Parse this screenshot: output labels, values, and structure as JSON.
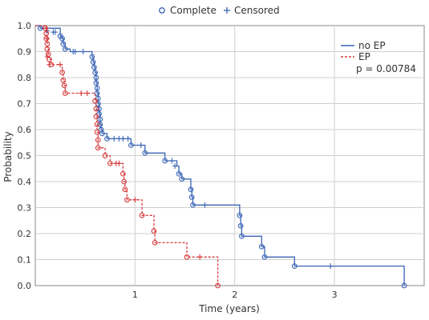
{
  "chart_data": {
    "type": "line",
    "title": "",
    "xlabel": "Time (years)",
    "ylabel": "Probability",
    "xlim": [
      0,
      3.9
    ],
    "ylim": [
      0,
      1.0
    ],
    "x_ticks": [
      1,
      2,
      3
    ],
    "x_tick_labels": [
      "1",
      "2",
      "3"
    ],
    "y_ticks": [
      0.0,
      0.1,
      0.2,
      0.3,
      0.4,
      0.5,
      0.6,
      0.7,
      0.8,
      0.9,
      1.0
    ],
    "y_tick_labels": [
      "0.0",
      "0.1",
      "0.2",
      "0.3",
      "0.4",
      "0.5",
      "0.6",
      "0.7",
      "0.8",
      "0.9",
      "1.0"
    ],
    "grid": true,
    "top_legend": {
      "complete_label": "Complete",
      "censored_label": "Censored"
    },
    "legend_placement": "top-right",
    "p_value_label": "p = 0.00784",
    "series": [
      {
        "name": "no EP",
        "color": "#3a64b4",
        "line_style": "solid",
        "steps": [
          [
            0.0,
            1.0
          ],
          [
            0.05,
            0.99
          ],
          [
            0.25,
            0.96
          ],
          [
            0.27,
            0.95
          ],
          [
            0.28,
            0.93
          ],
          [
            0.3,
            0.91
          ],
          [
            0.35,
            0.9
          ],
          [
            0.57,
            0.88
          ],
          [
            0.58,
            0.86
          ],
          [
            0.59,
            0.84
          ],
          [
            0.6,
            0.82
          ],
          [
            0.61,
            0.8
          ],
          [
            0.61,
            0.78
          ],
          [
            0.62,
            0.76
          ],
          [
            0.62,
            0.74
          ],
          [
            0.63,
            0.72
          ],
          [
            0.63,
            0.7
          ],
          [
            0.64,
            0.68
          ],
          [
            0.64,
            0.66
          ],
          [
            0.65,
            0.64
          ],
          [
            0.65,
            0.62
          ],
          [
            0.66,
            0.6
          ],
          [
            0.67,
            0.585
          ],
          [
            0.72,
            0.565
          ],
          [
            0.96,
            0.54
          ],
          [
            1.1,
            0.51
          ],
          [
            1.3,
            0.48
          ],
          [
            1.42,
            0.46
          ],
          [
            1.44,
            0.43
          ],
          [
            1.47,
            0.41
          ],
          [
            1.56,
            0.37
          ],
          [
            1.57,
            0.34
          ],
          [
            1.58,
            0.31
          ],
          [
            2.05,
            0.27
          ],
          [
            2.06,
            0.23
          ],
          [
            2.07,
            0.19
          ],
          [
            2.27,
            0.15
          ],
          [
            2.3,
            0.11
          ],
          [
            2.6,
            0.075
          ],
          [
            3.7,
            0.0
          ]
        ],
        "events": [
          [
            0.05,
            0.99
          ],
          [
            0.25,
            0.96
          ],
          [
            0.27,
            0.95
          ],
          [
            0.28,
            0.93
          ],
          [
            0.3,
            0.91
          ],
          [
            0.57,
            0.88
          ],
          [
            0.58,
            0.86
          ],
          [
            0.59,
            0.84
          ],
          [
            0.6,
            0.82
          ],
          [
            0.61,
            0.8
          ],
          [
            0.61,
            0.78
          ],
          [
            0.62,
            0.76
          ],
          [
            0.62,
            0.74
          ],
          [
            0.63,
            0.72
          ],
          [
            0.63,
            0.7
          ],
          [
            0.64,
            0.68
          ],
          [
            0.64,
            0.66
          ],
          [
            0.65,
            0.64
          ],
          [
            0.65,
            0.62
          ],
          [
            0.66,
            0.6
          ],
          [
            0.67,
            0.585
          ],
          [
            0.72,
            0.565
          ],
          [
            0.96,
            0.54
          ],
          [
            1.1,
            0.51
          ],
          [
            1.3,
            0.48
          ],
          [
            1.44,
            0.43
          ],
          [
            1.47,
            0.41
          ],
          [
            1.56,
            0.37
          ],
          [
            1.57,
            0.34
          ],
          [
            1.58,
            0.31
          ],
          [
            2.05,
            0.27
          ],
          [
            2.06,
            0.23
          ],
          [
            2.07,
            0.19
          ],
          [
            2.27,
            0.15
          ],
          [
            2.3,
            0.11
          ],
          [
            2.6,
            0.075
          ],
          [
            3.7,
            0.0
          ]
        ],
        "censored": [
          [
            0.12,
            0.98
          ],
          [
            0.18,
            0.975
          ],
          [
            0.2,
            0.975
          ],
          [
            0.38,
            0.9
          ],
          [
            0.4,
            0.9
          ],
          [
            0.48,
            0.9
          ],
          [
            0.79,
            0.565
          ],
          [
            0.84,
            0.565
          ],
          [
            0.88,
            0.565
          ],
          [
            0.93,
            0.565
          ],
          [
            1.06,
            0.54
          ],
          [
            1.37,
            0.48
          ],
          [
            1.4,
            0.46
          ],
          [
            1.7,
            0.31
          ],
          [
            2.96,
            0.075
          ]
        ]
      },
      {
        "name": "EP",
        "color": "#d63a3a",
        "line_style": "dashed",
        "steps": [
          [
            0.0,
            1.0
          ],
          [
            0.1,
            0.99
          ],
          [
            0.11,
            0.97
          ],
          [
            0.11,
            0.95
          ],
          [
            0.12,
            0.93
          ],
          [
            0.12,
            0.91
          ],
          [
            0.13,
            0.89
          ],
          [
            0.14,
            0.87
          ],
          [
            0.16,
            0.85
          ],
          [
            0.27,
            0.82
          ],
          [
            0.28,
            0.79
          ],
          [
            0.29,
            0.77
          ],
          [
            0.3,
            0.74
          ],
          [
            0.6,
            0.71
          ],
          [
            0.61,
            0.68
          ],
          [
            0.61,
            0.65
          ],
          [
            0.62,
            0.62
          ],
          [
            0.62,
            0.59
          ],
          [
            0.63,
            0.56
          ],
          [
            0.63,
            0.53
          ],
          [
            0.7,
            0.5
          ],
          [
            0.75,
            0.47
          ],
          [
            0.88,
            0.43
          ],
          [
            0.89,
            0.4
          ],
          [
            0.9,
            0.37
          ],
          [
            0.92,
            0.33
          ],
          [
            1.07,
            0.27
          ],
          [
            1.19,
            0.21
          ],
          [
            1.2,
            0.165
          ],
          [
            1.52,
            0.11
          ],
          [
            1.83,
            0.0
          ]
        ],
        "events": [
          [
            0.1,
            0.99
          ],
          [
            0.11,
            0.97
          ],
          [
            0.11,
            0.95
          ],
          [
            0.12,
            0.93
          ],
          [
            0.12,
            0.91
          ],
          [
            0.13,
            0.89
          ],
          [
            0.14,
            0.87
          ],
          [
            0.16,
            0.85
          ],
          [
            0.27,
            0.82
          ],
          [
            0.28,
            0.79
          ],
          [
            0.29,
            0.77
          ],
          [
            0.3,
            0.74
          ],
          [
            0.6,
            0.71
          ],
          [
            0.61,
            0.68
          ],
          [
            0.61,
            0.65
          ],
          [
            0.62,
            0.62
          ],
          [
            0.62,
            0.59
          ],
          [
            0.63,
            0.56
          ],
          [
            0.63,
            0.53
          ],
          [
            0.7,
            0.5
          ],
          [
            0.75,
            0.47
          ],
          [
            0.88,
            0.43
          ],
          [
            0.89,
            0.4
          ],
          [
            0.9,
            0.37
          ],
          [
            0.92,
            0.33
          ],
          [
            1.07,
            0.27
          ],
          [
            1.19,
            0.21
          ],
          [
            1.2,
            0.165
          ],
          [
            1.52,
            0.11
          ],
          [
            1.83,
            0.0
          ]
        ],
        "censored": [
          [
            0.11,
            0.99
          ],
          [
            0.12,
            0.95
          ],
          [
            0.12,
            0.88
          ],
          [
            0.14,
            0.85
          ],
          [
            0.25,
            0.85
          ],
          [
            0.46,
            0.74
          ],
          [
            0.52,
            0.74
          ],
          [
            0.81,
            0.47
          ],
          [
            0.84,
            0.47
          ],
          [
            1.0,
            0.33
          ],
          [
            1.65,
            0.11
          ]
        ]
      }
    ]
  }
}
